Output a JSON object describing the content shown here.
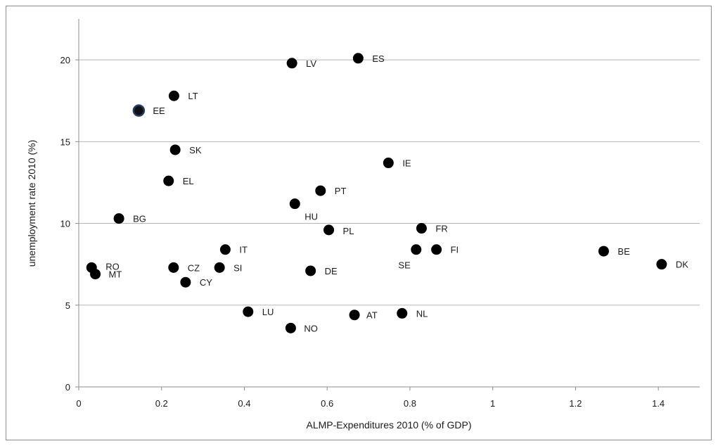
{
  "chart_data": {
    "type": "scatter",
    "xlabel": "ALMP-Expenditures 2010 (% of GDP)",
    "ylabel": "unemployment rate 2010 (%)",
    "xlim": [
      0,
      1.5
    ],
    "ylim": [
      0,
      22.5
    ],
    "xticks": [
      "0",
      "0.2",
      "0.4",
      "0.6",
      "0.8",
      "1",
      "1.2",
      "1.4"
    ],
    "yticks": [
      "0",
      "5",
      "10",
      "15",
      "20"
    ],
    "grid": "horizontal",
    "highlight_color": "#1f3f66",
    "point_color": "#000000",
    "points": [
      {
        "label": "ES",
        "x": 0.675,
        "y": 20.1
      },
      {
        "label": "LV",
        "x": 0.515,
        "y": 19.8
      },
      {
        "label": "LT",
        "x": 0.23,
        "y": 17.8
      },
      {
        "label": "EE",
        "x": 0.145,
        "y": 16.9,
        "highlight": true
      },
      {
        "label": "SK",
        "x": 0.233,
        "y": 14.5
      },
      {
        "label": "IE",
        "x": 0.748,
        "y": 13.7
      },
      {
        "label": "EL",
        "x": 0.217,
        "y": 12.6
      },
      {
        "label": "PT",
        "x": 0.584,
        "y": 12.0
      },
      {
        "label": "HU",
        "x": 0.522,
        "y": 11.2
      },
      {
        "label": "BG",
        "x": 0.097,
        "y": 10.3
      },
      {
        "label": "FR",
        "x": 0.828,
        "y": 9.7
      },
      {
        "label": "PL",
        "x": 0.604,
        "y": 9.6
      },
      {
        "label": "IT",
        "x": 0.354,
        "y": 8.4
      },
      {
        "label": "SE",
        "x": 0.815,
        "y": 8.4
      },
      {
        "label": "FI",
        "x": 0.864,
        "y": 8.4
      },
      {
        "label": "BE",
        "x": 1.268,
        "y": 8.3
      },
      {
        "label": "DK",
        "x": 1.408,
        "y": 7.5
      },
      {
        "label": "RO",
        "x": 0.031,
        "y": 7.3
      },
      {
        "label": "CZ",
        "x": 0.229,
        "y": 7.3
      },
      {
        "label": "SI",
        "x": 0.34,
        "y": 7.3
      },
      {
        "label": "DE",
        "x": 0.56,
        "y": 7.1
      },
      {
        "label": "MT",
        "x": 0.04,
        "y": 6.9
      },
      {
        "label": "CY",
        "x": 0.258,
        "y": 6.4
      },
      {
        "label": "LU",
        "x": 0.409,
        "y": 4.6
      },
      {
        "label": "NL",
        "x": 0.781,
        "y": 4.5
      },
      {
        "label": "AT",
        "x": 0.666,
        "y": 4.4
      },
      {
        "label": "NO",
        "x": 0.512,
        "y": 3.6
      }
    ]
  }
}
